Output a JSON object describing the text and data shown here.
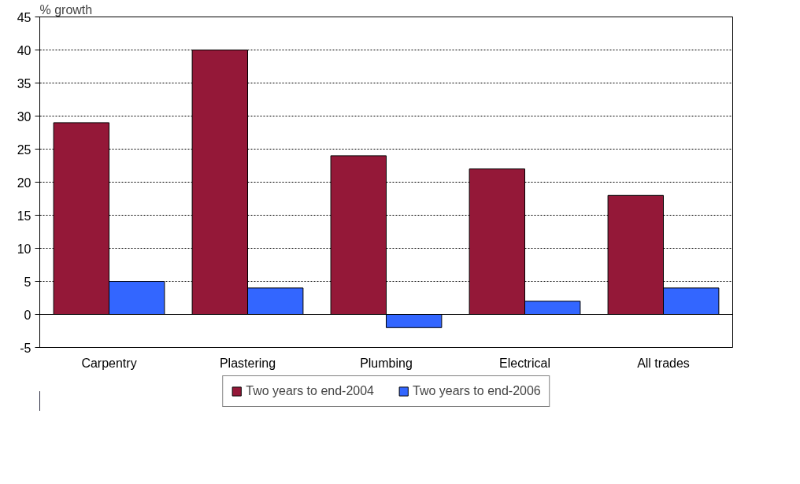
{
  "chart_data": {
    "type": "bar",
    "ylabel": "% growth",
    "categories": [
      "Carpentry",
      "Plastering",
      "Plumbing",
      "Electrical",
      "All trades"
    ],
    "series": [
      {
        "name": "Two years to end-2004",
        "color": "#941838",
        "values": [
          29,
          40,
          24,
          22,
          18
        ]
      },
      {
        "name": "Two years to end-2006",
        "color": "#3366ff",
        "values": [
          5,
          4,
          -2,
          2,
          4
        ]
      }
    ],
    "ylim": [
      -5,
      45
    ],
    "yticks": [
      -5,
      0,
      5,
      10,
      15,
      20,
      25,
      30,
      35,
      40,
      45
    ],
    "grid": "y",
    "legend": "bottom"
  }
}
